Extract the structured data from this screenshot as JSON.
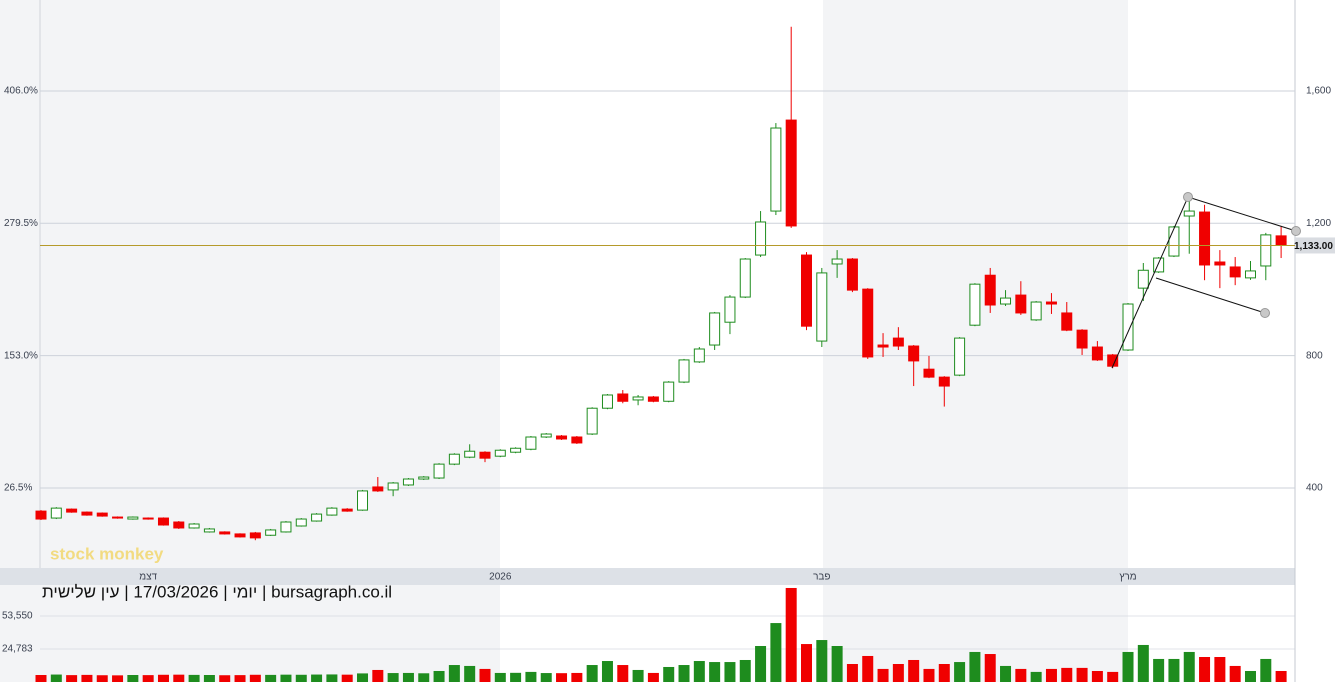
{
  "chart_data": [
    {
      "type": "candlestick",
      "watermark": "stock monkey",
      "categories": [
        null,
        null,
        null,
        null,
        null,
        null,
        null,
        "דצמ",
        null,
        null,
        null,
        null,
        null,
        null,
        null,
        null,
        null,
        null,
        null,
        null,
        null,
        null,
        null,
        null,
        null,
        null,
        null,
        null,
        null,
        null,
        "2026",
        null,
        null,
        null,
        null,
        null,
        null,
        null,
        null,
        null,
        null,
        null,
        null,
        null,
        null,
        null,
        null,
        null,
        null,
        null,
        null,
        "פבר",
        null,
        null,
        null,
        null,
        null,
        null,
        null,
        null,
        null,
        null,
        null,
        null,
        null,
        null,
        null,
        null,
        null,
        null,
        null,
        "מרץ",
        null,
        null,
        null,
        null,
        null,
        null,
        null,
        null,
        null,
        null
      ],
      "open": [
        330,
        309,
        336,
        327,
        324,
        312,
        306,
        309,
        309,
        297,
        279,
        267,
        267,
        261,
        264,
        257,
        267,
        285,
        300,
        318,
        336,
        333,
        403,
        394,
        409,
        427,
        430,
        472,
        493,
        508,
        496,
        508,
        517,
        554,
        557,
        554,
        563,
        641,
        684,
        666,
        675,
        662,
        720,
        781,
        832,
        901,
        977,
        1104,
        1237,
        1512,
        1104,
        844,
        1077,
        1092,
        1001,
        832,
        853,
        829,
        759,
        735,
        741,
        892,
        1043,
        956,
        983,
        908,
        962,
        929,
        877,
        826,
        802,
        817,
        1004,
        1053,
        1101,
        1222,
        1234,
        1083,
        1068,
        1035,
        1071,
        1162
      ],
      "high": [
        333,
        342,
        338,
        329,
        326,
        314,
        314,
        311,
        311,
        300,
        294,
        279,
        269,
        263,
        267,
        276,
        300,
        309,
        324,
        342,
        339,
        394,
        433,
        418,
        430,
        436,
        475,
        505,
        532,
        511,
        517,
        523,
        557,
        566,
        560,
        557,
        644,
        684,
        696,
        681,
        678,
        723,
        790,
        826,
        932,
        983,
        1095,
        1237,
        1503,
        1794,
        1113,
        1065,
        1119,
        1095,
        1004,
        868,
        886,
        832,
        799,
        738,
        856,
        1019,
        1065,
        998,
        1025,
        965,
        989,
        962,
        880,
        844,
        805,
        959,
        1080,
        1098,
        1192,
        1283,
        1256,
        1119,
        1098,
        1086,
        1171,
        1192
      ],
      "low": [
        303,
        306,
        325,
        316,
        313,
        307,
        304,
        304,
        286,
        276,
        277,
        265,
        259,
        250,
        242,
        255,
        265,
        283,
        298,
        316,
        328,
        331,
        388,
        375,
        406,
        424,
        427,
        469,
        490,
        478,
        493,
        505,
        514,
        551,
        545,
        533,
        560,
        638,
        656,
        650,
        659,
        659,
        717,
        778,
        817,
        865,
        974,
        1098,
        1225,
        1186,
        877,
        826,
        1035,
        992,
        790,
        796,
        817,
        708,
        732,
        646,
        738,
        889,
        929,
        950,
        923,
        905,
        926,
        874,
        802,
        784,
        762,
        814,
        965,
        1050,
        1098,
        1108,
        1028,
        1004,
        1013,
        1029,
        1028,
        1095
      ],
      "close": [
        306,
        339,
        327,
        318,
        315,
        309,
        312,
        306,
        288,
        279,
        291,
        276,
        261,
        252,
        249,
        273,
        297,
        306,
        321,
        339,
        330,
        391,
        391,
        415,
        427,
        433,
        472,
        502,
        511,
        490,
        514,
        520,
        554,
        563,
        548,
        536,
        641,
        681,
        662,
        675,
        662,
        720,
        787,
        820,
        929,
        977,
        1092,
        1204,
        1488,
        1192,
        889,
        1050,
        1092,
        998,
        796,
        826,
        829,
        784,
        735,
        708,
        853,
        1016,
        953,
        974,
        929,
        962,
        956,
        877,
        823,
        787,
        768,
        956,
        1058,
        1095,
        1189,
        1237,
        1074,
        1074,
        1038,
        1056,
        1165,
        1133
      ],
      "up_color": "#1e8c1e",
      "down_color": "#f00000",
      "ylim": [
        158,
        1875
      ],
      "yticks": [
        {
          "value": 1600,
          "label": "1,600"
        },
        {
          "value": 1200,
          "label": "1,200"
        },
        800,
        400
      ],
      "y2lim": [
        -50,
        493
      ],
      "y2ticks": [
        {
          "value": 406,
          "label": "406.0%"
        },
        {
          "value": 279.5,
          "label": "279.5%"
        },
        {
          "value": 153,
          "label": "153.0%"
        },
        {
          "value": 26.5,
          "label": "26.5%"
        }
      ],
      "last_price": {
        "value": 1133,
        "label": "1,133.00"
      },
      "last_price_color": "#b59a2a",
      "grid": true
    },
    {
      "type": "bar",
      "title": "יומי | 17/03/2026 | עין שלישית | bursagraph.co.il",
      "values": [
        2100,
        2500,
        2000,
        2200,
        1900,
        1800,
        2100,
        2000,
        2300,
        2400,
        2200,
        2100,
        1900,
        2000,
        2300,
        2200,
        2400,
        2300,
        2500,
        2600,
        2400,
        3500,
        6500,
        3800,
        3900,
        3600,
        5600,
        10800,
        10000,
        7400,
        3900,
        4000,
        4800,
        3800,
        3700,
        3900,
        10800,
        14300,
        10800,
        6500,
        3900,
        9100,
        10800,
        14300,
        13400,
        13400,
        15200,
        27400,
        47400,
        78000,
        29100,
        32600,
        27400,
        11700,
        18700,
        7400,
        11700,
        15200,
        7400,
        11700,
        13400,
        22200,
        20400,
        10000,
        7400,
        4800,
        7400,
        8300,
        8300,
        5600,
        4800,
        22200,
        28300,
        16100,
        16100,
        22200,
        17800,
        17800,
        10000,
        5600,
        16100,
        5600
      ],
      "ylim": [
        -4000,
        80600
      ],
      "yticks": [
        {
          "value": 53550,
          "label": "53,550"
        },
        {
          "value": 24783,
          "label": "24,783"
        }
      ],
      "grid": true
    }
  ]
}
